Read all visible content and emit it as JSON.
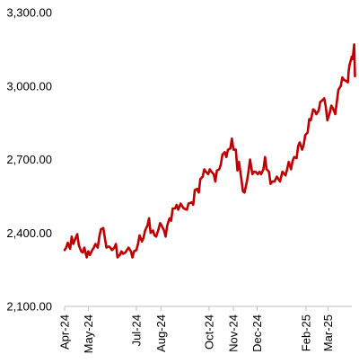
{
  "chart_data": {
    "type": "line",
    "title": "",
    "xlabel": "",
    "ylabel": "",
    "ylim": [
      2100,
      3300
    ],
    "grid": false,
    "legend": "none",
    "y_ticks": [
      {
        "value": 2100,
        "label": "2,100.00"
      },
      {
        "value": 2400,
        "label": "2,400.00"
      },
      {
        "value": 2700,
        "label": "2,700.00"
      },
      {
        "value": 3000,
        "label": "3,000.00"
      },
      {
        "value": 3300,
        "label": "3,300.00"
      }
    ],
    "x_ticks": [
      {
        "value": "2024-04-01",
        "label": "Apr-24"
      },
      {
        "value": "2024-05-01",
        "label": "May-24"
      },
      {
        "value": "2024-07-01",
        "label": "Jul-24"
      },
      {
        "value": "2024-08-01",
        "label": "Aug-24"
      },
      {
        "value": "2024-10-01",
        "label": "Oct-24"
      },
      {
        "value": "2024-11-01",
        "label": "Nov-24"
      },
      {
        "value": "2024-12-01",
        "label": "Dec-24"
      },
      {
        "value": "2025-02-01",
        "label": "Feb-25"
      },
      {
        "value": "2025-03-01",
        "label": "Mar-25"
      }
    ],
    "x_range": [
      "2024-04-01",
      "2025-03-31"
    ],
    "series": [
      {
        "color": "#c00000",
        "points": [
          [
            "2024-04-01",
            2330
          ],
          [
            "2024-04-03",
            2340
          ],
          [
            "2024-04-05",
            2360
          ],
          [
            "2024-04-08",
            2335
          ],
          [
            "2024-04-10",
            2385
          ],
          [
            "2024-04-12",
            2355
          ],
          [
            "2024-04-15",
            2380
          ],
          [
            "2024-04-17",
            2395
          ],
          [
            "2024-04-19",
            2350
          ],
          [
            "2024-04-22",
            2325
          ],
          [
            "2024-04-24",
            2320
          ],
          [
            "2024-04-26",
            2340
          ],
          [
            "2024-04-29",
            2300
          ],
          [
            "2024-05-01",
            2325
          ],
          [
            "2024-05-03",
            2310
          ],
          [
            "2024-05-06",
            2330
          ],
          [
            "2024-05-08",
            2340
          ],
          [
            "2024-05-10",
            2355
          ],
          [
            "2024-05-13",
            2340
          ],
          [
            "2024-05-15",
            2385
          ],
          [
            "2024-05-17",
            2415
          ],
          [
            "2024-05-20",
            2420
          ],
          [
            "2024-05-22",
            2380
          ],
          [
            "2024-05-24",
            2340
          ],
          [
            "2024-05-27",
            2345
          ],
          [
            "2024-05-29",
            2340
          ],
          [
            "2024-05-31",
            2330
          ],
          [
            "2024-06-03",
            2340
          ],
          [
            "2024-06-05",
            2355
          ],
          [
            "2024-06-07",
            2300
          ],
          [
            "2024-06-10",
            2310
          ],
          [
            "2024-06-12",
            2325
          ],
          [
            "2024-06-14",
            2315
          ],
          [
            "2024-06-17",
            2320
          ],
          [
            "2024-06-19",
            2330
          ],
          [
            "2024-06-21",
            2340
          ],
          [
            "2024-06-24",
            2325
          ],
          [
            "2024-06-26",
            2300
          ],
          [
            "2024-06-28",
            2325
          ],
          [
            "2024-07-01",
            2330
          ],
          [
            "2024-07-03",
            2355
          ],
          [
            "2024-07-05",
            2390
          ],
          [
            "2024-07-08",
            2365
          ],
          [
            "2024-07-10",
            2380
          ],
          [
            "2024-07-12",
            2410
          ],
          [
            "2024-07-15",
            2430
          ],
          [
            "2024-07-17",
            2460
          ],
          [
            "2024-07-19",
            2400
          ],
          [
            "2024-07-22",
            2410
          ],
          [
            "2024-07-24",
            2390
          ],
          [
            "2024-07-26",
            2385
          ],
          [
            "2024-07-29",
            2415
          ],
          [
            "2024-07-31",
            2440
          ],
          [
            "2024-08-02",
            2430
          ],
          [
            "2024-08-05",
            2410
          ],
          [
            "2024-08-07",
            2385
          ],
          [
            "2024-08-09",
            2430
          ],
          [
            "2024-08-12",
            2460
          ],
          [
            "2024-08-14",
            2450
          ],
          [
            "2024-08-16",
            2500
          ],
          [
            "2024-08-19",
            2500
          ],
          [
            "2024-08-21",
            2515
          ],
          [
            "2024-08-23",
            2495
          ],
          [
            "2024-08-26",
            2520
          ],
          [
            "2024-08-28",
            2510
          ],
          [
            "2024-08-30",
            2500
          ],
          [
            "2024-09-03",
            2495
          ],
          [
            "2024-09-05",
            2520
          ],
          [
            "2024-09-09",
            2525
          ],
          [
            "2024-09-11",
            2515
          ],
          [
            "2024-09-13",
            2575
          ],
          [
            "2024-09-16",
            2580
          ],
          [
            "2024-09-18",
            2565
          ],
          [
            "2024-09-20",
            2620
          ],
          [
            "2024-09-23",
            2630
          ],
          [
            "2024-09-25",
            2660
          ],
          [
            "2024-09-27",
            2650
          ],
          [
            "2024-09-30",
            2640
          ],
          [
            "2024-10-02",
            2660
          ],
          [
            "2024-10-04",
            2650
          ],
          [
            "2024-10-07",
            2640
          ],
          [
            "2024-10-09",
            2610
          ],
          [
            "2024-10-11",
            2655
          ],
          [
            "2024-10-14",
            2660
          ],
          [
            "2024-10-16",
            2680
          ],
          [
            "2024-10-18",
            2720
          ],
          [
            "2024-10-21",
            2730
          ],
          [
            "2024-10-23",
            2710
          ],
          [
            "2024-10-25",
            2740
          ],
          [
            "2024-10-28",
            2745
          ],
          [
            "2024-10-30",
            2785
          ],
          [
            "2024-11-01",
            2740
          ],
          [
            "2024-11-04",
            2740
          ],
          [
            "2024-11-06",
            2655
          ],
          [
            "2024-11-08",
            2690
          ],
          [
            "2024-11-11",
            2620
          ],
          [
            "2024-11-13",
            2570
          ],
          [
            "2024-11-15",
            2565
          ],
          [
            "2024-11-18",
            2610
          ],
          [
            "2024-11-20",
            2650
          ],
          [
            "2024-11-22",
            2700
          ],
          [
            "2024-11-25",
            2640
          ],
          [
            "2024-11-27",
            2650
          ],
          [
            "2024-11-29",
            2650
          ],
          [
            "2024-12-02",
            2640
          ],
          [
            "2024-12-04",
            2650
          ],
          [
            "2024-12-06",
            2640
          ],
          [
            "2024-12-09",
            2660
          ],
          [
            "2024-12-11",
            2710
          ],
          [
            "2024-12-13",
            2660
          ],
          [
            "2024-12-16",
            2650
          ],
          [
            "2024-12-18",
            2600
          ],
          [
            "2024-12-20",
            2610
          ],
          [
            "2024-12-23",
            2610
          ],
          [
            "2024-12-26",
            2630
          ],
          [
            "2024-12-30",
            2610
          ],
          [
            "2025-01-02",
            2650
          ],
          [
            "2025-01-06",
            2635
          ],
          [
            "2025-01-08",
            2660
          ],
          [
            "2025-01-10",
            2690
          ],
          [
            "2025-01-13",
            2660
          ],
          [
            "2025-01-15",
            2695
          ],
          [
            "2025-01-17",
            2710
          ],
          [
            "2025-01-20",
            2705
          ],
          [
            "2025-01-22",
            2755
          ],
          [
            "2025-01-24",
            2770
          ],
          [
            "2025-01-27",
            2740
          ],
          [
            "2025-01-29",
            2760
          ],
          [
            "2025-01-31",
            2800
          ],
          [
            "2025-02-03",
            2810
          ],
          [
            "2025-02-05",
            2865
          ],
          [
            "2025-02-07",
            2860
          ],
          [
            "2025-02-10",
            2905
          ],
          [
            "2025-02-12",
            2900
          ],
          [
            "2025-02-14",
            2885
          ],
          [
            "2025-02-17",
            2900
          ],
          [
            "2025-02-19",
            2935
          ],
          [
            "2025-02-21",
            2940
          ],
          [
            "2025-02-24",
            2950
          ],
          [
            "2025-02-26",
            2915
          ],
          [
            "2025-02-28",
            2860
          ],
          [
            "2025-03-03",
            2890
          ],
          [
            "2025-03-05",
            2920
          ],
          [
            "2025-03-07",
            2910
          ],
          [
            "2025-03-10",
            2885
          ],
          [
            "2025-03-12",
            2935
          ],
          [
            "2025-03-14",
            2985
          ],
          [
            "2025-03-17",
            3000
          ],
          [
            "2025-03-19",
            3035
          ],
          [
            "2025-03-21",
            3025
          ],
          [
            "2025-03-24",
            3020
          ],
          [
            "2025-03-26",
            3015
          ],
          [
            "2025-03-27",
            3060
          ],
          [
            "2025-03-28",
            3085
          ],
          [
            "2025-03-31",
            3120
          ],
          [
            "2025-04-01",
            3110
          ],
          [
            "2025-04-02",
            3140
          ],
          [
            "2025-04-03",
            3170
          ],
          [
            "2025-04-04",
            3040
          ]
        ]
      }
    ]
  }
}
